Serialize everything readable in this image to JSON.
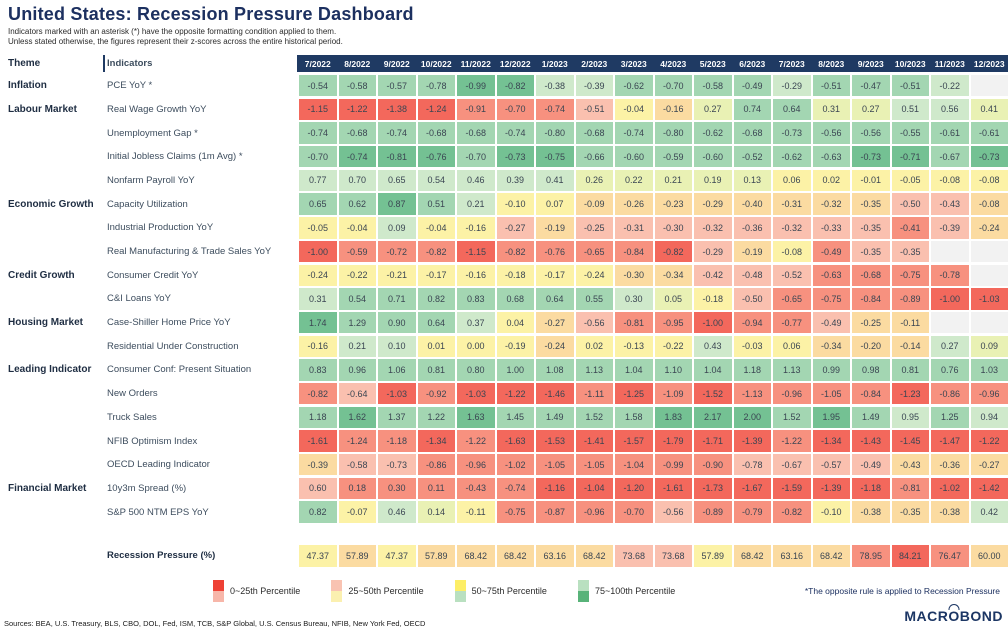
{
  "title": "United States: Recession Pressure Dashboard",
  "subtitle_line1": "Indicators marked with an asterisk (*) have the opposite formatting condition applied to them.",
  "subtitle_line2": "Unless stated otherwise, the figures represent their z-scores across the entire historical period.",
  "header": {
    "theme": "Theme",
    "indicators": "Indicators"
  },
  "palette": {
    "r": "#f3685c",
    "p2": "#f7917f",
    "p1": "#fac0af",
    "o": "#fbdba1",
    "y": "#fcf2a6",
    "yg": "#e9f1b4",
    "g1": "#cfe9cb",
    "g2": "#a3d6b2",
    "g3": "#74c193",
    "x": "#f2f2f2"
  },
  "chart_data": {
    "type": "heatmap",
    "title": "United States: Recession Pressure Dashboard",
    "value_note": "z-scores; colors encode percentile buckets",
    "columns": [
      "7/2022",
      "8/2022",
      "9/2022",
      "10/2022",
      "11/2022",
      "12/2022",
      "1/2023",
      "2/2023",
      "3/2023",
      "4/2023",
      "5/2023",
      "6/2023",
      "7/2023",
      "8/2023",
      "9/2023",
      "10/2023",
      "11/2023",
      "12/2023"
    ],
    "rows": [
      {
        "theme": "Inflation",
        "indicator": "PCE YoY *",
        "values": [
          -0.54,
          -0.58,
          -0.57,
          -0.78,
          -0.99,
          -0.82,
          -0.38,
          -0.39,
          -0.62,
          -0.7,
          -0.58,
          -0.49,
          -0.29,
          -0.51,
          -0.47,
          -0.51,
          -0.22,
          null
        ],
        "colors": [
          "g2",
          "g2",
          "g2",
          "g2",
          "g3",
          "g3",
          "g1",
          "g1",
          "g2",
          "g2",
          "g2",
          "g2",
          "g1",
          "g2",
          "g2",
          "g2",
          "g1",
          "x"
        ]
      },
      {
        "theme": "Labour Market",
        "indicator": "Real Wage Growth YoY",
        "values": [
          -1.15,
          -1.22,
          -1.38,
          -1.24,
          -0.91,
          -0.7,
          -0.74,
          -0.51,
          -0.04,
          -0.16,
          0.27,
          0.74,
          0.64,
          0.31,
          0.27,
          0.51,
          0.56,
          0.41
        ],
        "colors": [
          "r",
          "r",
          "r",
          "r",
          "p2",
          "p2",
          "p2",
          "p1",
          "y",
          "o",
          "yg",
          "g2",
          "g2",
          "yg",
          "yg",
          "g1",
          "g1",
          "yg"
        ]
      },
      {
        "theme": null,
        "indicator": "Unemployment Gap *",
        "values": [
          -0.74,
          -0.68,
          -0.74,
          -0.68,
          -0.68,
          -0.74,
          -0.8,
          -0.68,
          -0.74,
          -0.8,
          -0.62,
          -0.68,
          -0.73,
          -0.56,
          -0.56,
          -0.55,
          -0.61,
          -0.61
        ],
        "colors": [
          "g2",
          "g2",
          "g2",
          "g2",
          "g2",
          "g2",
          "g2",
          "g2",
          "g2",
          "g2",
          "g2",
          "g2",
          "g2",
          "g2",
          "g2",
          "g2",
          "g2",
          "g2"
        ]
      },
      {
        "theme": null,
        "indicator": "Initial Jobless Claims (1m Avg) *",
        "values": [
          -0.7,
          -0.74,
          -0.81,
          -0.76,
          -0.7,
          -0.73,
          -0.75,
          -0.66,
          -0.6,
          -0.59,
          -0.6,
          -0.52,
          -0.62,
          -0.63,
          -0.73,
          -0.71,
          -0.67,
          -0.73
        ],
        "colors": [
          "g2",
          "g3",
          "g3",
          "g3",
          "g2",
          "g3",
          "g3",
          "g2",
          "g2",
          "g2",
          "g2",
          "g2",
          "g2",
          "g2",
          "g3",
          "g3",
          "g2",
          "g3"
        ]
      },
      {
        "theme": null,
        "indicator": "Nonfarm Payroll YoY",
        "values": [
          0.77,
          0.7,
          0.65,
          0.54,
          0.46,
          0.39,
          0.41,
          0.26,
          0.22,
          0.21,
          0.19,
          0.13,
          0.06,
          0.02,
          -0.01,
          -0.05,
          -0.08,
          -0.08
        ],
        "colors": [
          "g1",
          "g1",
          "g1",
          "g1",
          "g1",
          "g1",
          "g1",
          "yg",
          "yg",
          "yg",
          "yg",
          "yg",
          "y",
          "y",
          "y",
          "y",
          "y",
          "y"
        ]
      },
      {
        "theme": "Economic Growth",
        "indicator": "Capacity Utilization",
        "values": [
          0.65,
          0.62,
          0.87,
          0.51,
          0.21,
          -0.1,
          0.07,
          -0.09,
          -0.26,
          -0.23,
          -0.29,
          -0.4,
          -0.31,
          -0.32,
          -0.35,
          -0.5,
          -0.43,
          -0.08
        ],
        "colors": [
          "g2",
          "g2",
          "g3",
          "g2",
          "g1",
          "y",
          "y",
          "o",
          "o",
          "o",
          "o",
          "o",
          "o",
          "o",
          "o",
          "p1",
          "p1",
          "o"
        ]
      },
      {
        "theme": null,
        "indicator": "Industrial Production YoY",
        "values": [
          -0.05,
          -0.04,
          0.09,
          -0.04,
          -0.16,
          -0.27,
          -0.19,
          -0.25,
          -0.31,
          -0.3,
          -0.32,
          -0.36,
          -0.32,
          -0.33,
          -0.35,
          -0.41,
          -0.39,
          -0.24
        ],
        "colors": [
          "y",
          "y",
          "g1",
          "y",
          "y",
          "p1",
          "o",
          "p1",
          "p1",
          "p1",
          "p1",
          "p1",
          "p1",
          "p1",
          "p1",
          "p2",
          "p1",
          "o"
        ]
      },
      {
        "theme": null,
        "indicator": "Real Manufacturing & Trade Sales YoY",
        "values": [
          -1.0,
          -0.59,
          -0.72,
          -0.82,
          -1.15,
          -0.82,
          -0.76,
          -0.65,
          -0.84,
          -0.82,
          -0.29,
          -0.19,
          -0.08,
          -0.49,
          -0.35,
          -0.35,
          null,
          null
        ],
        "colors": [
          "r",
          "p2",
          "p2",
          "p2",
          "r",
          "p2",
          "p2",
          "p2",
          "p2",
          "r",
          "p1",
          "o",
          "y",
          "p2",
          "p1",
          "p1",
          "x",
          "x"
        ]
      },
      {
        "theme": "Credit Growth",
        "indicator": "Consumer Credit YoY",
        "values": [
          -0.24,
          -0.22,
          -0.21,
          -0.17,
          -0.16,
          -0.18,
          -0.17,
          -0.24,
          -0.3,
          -0.34,
          -0.42,
          -0.48,
          -0.52,
          -0.63,
          -0.68,
          -0.75,
          -0.78,
          null
        ],
        "colors": [
          "y",
          "y",
          "y",
          "y",
          "y",
          "y",
          "y",
          "y",
          "o",
          "o",
          "p1",
          "p1",
          "p1",
          "p2",
          "p2",
          "p2",
          "p2",
          "x"
        ]
      },
      {
        "theme": null,
        "indicator": "C&I Loans YoY",
        "values": [
          0.31,
          0.54,
          0.71,
          0.82,
          0.83,
          0.68,
          0.64,
          0.55,
          0.3,
          0.05,
          -0.18,
          -0.5,
          -0.65,
          -0.75,
          -0.84,
          -0.89,
          -1.0,
          -1.03
        ],
        "colors": [
          "g1",
          "g2",
          "g2",
          "g2",
          "g2",
          "g2",
          "g2",
          "g2",
          "g1",
          "yg",
          "y",
          "p1",
          "p2",
          "p2",
          "p2",
          "p2",
          "r",
          "r"
        ]
      },
      {
        "theme": "Housing Market",
        "indicator": "Case-Shiller Home Price YoY",
        "values": [
          1.74,
          1.29,
          0.9,
          0.64,
          0.37,
          0.04,
          -0.27,
          -0.56,
          -0.81,
          -0.95,
          -1.0,
          -0.94,
          -0.77,
          -0.49,
          -0.25,
          -0.11,
          null,
          null
        ],
        "colors": [
          "g3",
          "g2",
          "g2",
          "g2",
          "g1",
          "y",
          "o",
          "p1",
          "p2",
          "p2",
          "r",
          "p2",
          "p2",
          "p1",
          "o",
          "o",
          "x",
          "x"
        ]
      },
      {
        "theme": null,
        "indicator": "Residential Under Construction",
        "values": [
          -0.16,
          0.21,
          0.1,
          0.01,
          0.0,
          -0.19,
          -0.24,
          0.02,
          -0.13,
          -0.22,
          0.43,
          -0.03,
          0.06,
          -0.34,
          -0.2,
          -0.14,
          0.27,
          0.09
        ],
        "colors": [
          "y",
          "g1",
          "g1",
          "y",
          "y",
          "y",
          "o",
          "y",
          "y",
          "y",
          "g1",
          "y",
          "y",
          "o",
          "o",
          "o",
          "g1",
          "yg"
        ]
      },
      {
        "theme": "Leading Indicator",
        "indicator": "Consumer Conf: Present Situation",
        "values": [
          0.83,
          0.96,
          1.06,
          0.81,
          0.8,
          1.0,
          1.08,
          1.13,
          1.04,
          1.1,
          1.04,
          1.18,
          1.13,
          0.99,
          0.98,
          0.81,
          0.76,
          1.03
        ],
        "colors": [
          "g2",
          "g2",
          "g2",
          "g2",
          "g2",
          "g2",
          "g2",
          "g2",
          "g2",
          "g2",
          "g2",
          "g2",
          "g2",
          "g2",
          "g2",
          "g2",
          "g2",
          "g2"
        ]
      },
      {
        "theme": null,
        "indicator": "New Orders",
        "values": [
          -0.82,
          -0.64,
          -1.03,
          -0.92,
          -1.03,
          -1.22,
          -1.46,
          -1.11,
          -1.25,
          -1.09,
          -1.52,
          -1.13,
          -0.96,
          -1.05,
          -0.84,
          -1.23,
          -0.86,
          -0.96
        ],
        "colors": [
          "p2",
          "p1",
          "r",
          "p2",
          "r",
          "r",
          "r",
          "p2",
          "r",
          "p2",
          "r",
          "p2",
          "p2",
          "p2",
          "p2",
          "r",
          "p2",
          "p2"
        ]
      },
      {
        "theme": null,
        "indicator": "Truck Sales",
        "values": [
          1.18,
          1.62,
          1.37,
          1.22,
          1.63,
          1.45,
          1.49,
          1.52,
          1.58,
          1.83,
          2.17,
          2.0,
          1.52,
          1.95,
          1.49,
          0.95,
          1.25,
          0.94
        ],
        "colors": [
          "g2",
          "g3",
          "g2",
          "g2",
          "g3",
          "g2",
          "g2",
          "g2",
          "g2",
          "g3",
          "g3",
          "g3",
          "g2",
          "g3",
          "g2",
          "g1",
          "g2",
          "g1"
        ]
      },
      {
        "theme": null,
        "indicator": "NFIB Optimism Index",
        "values": [
          -1.61,
          -1.24,
          -1.18,
          -1.34,
          -1.22,
          -1.63,
          -1.53,
          -1.41,
          -1.57,
          -1.79,
          -1.71,
          -1.39,
          -1.22,
          -1.34,
          -1.43,
          -1.45,
          -1.47,
          -1.22
        ],
        "colors": [
          "r",
          "p2",
          "p2",
          "r",
          "p2",
          "r",
          "r",
          "r",
          "r",
          "r",
          "r",
          "r",
          "p2",
          "r",
          "r",
          "r",
          "r",
          "r"
        ]
      },
      {
        "theme": null,
        "indicator": "OECD Leading Indicator",
        "values": [
          -0.39,
          -0.58,
          -0.73,
          -0.86,
          -0.96,
          -1.02,
          -1.05,
          -1.05,
          -1.04,
          -0.99,
          -0.9,
          -0.78,
          -0.67,
          -0.57,
          -0.49,
          -0.43,
          -0.36,
          -0.27
        ],
        "colors": [
          "o",
          "p1",
          "p1",
          "p2",
          "p2",
          "p2",
          "p2",
          "p2",
          "p2",
          "p2",
          "p2",
          "p1",
          "p1",
          "p1",
          "p1",
          "o",
          "o",
          "o"
        ]
      },
      {
        "theme": "Financial Market",
        "indicator": "10y3m Spread (%)",
        "values": [
          0.6,
          0.18,
          0.3,
          0.11,
          -0.43,
          -0.74,
          -1.16,
          -1.04,
          -1.2,
          -1.61,
          -1.73,
          -1.67,
          -1.59,
          -1.39,
          -1.18,
          -0.81,
          -1.02,
          -1.42
        ],
        "colors": [
          "p1",
          "p2",
          "p2",
          "p2",
          "p2",
          "p2",
          "r",
          "r",
          "r",
          "r",
          "r",
          "r",
          "r",
          "r",
          "r",
          "p2",
          "r",
          "r"
        ]
      },
      {
        "theme": null,
        "indicator": "S&P 500 NTM EPS YoY",
        "values": [
          0.82,
          -0.07,
          0.46,
          0.14,
          -0.11,
          -0.75,
          -0.87,
          -0.96,
          -0.7,
          -0.56,
          -0.89,
          -0.79,
          -0.82,
          -0.1,
          -0.38,
          -0.35,
          -0.38,
          0.42
        ],
        "colors": [
          "g2",
          "y",
          "g1",
          "yg",
          "y",
          "p2",
          "p2",
          "p2",
          "p2",
          "p1",
          "p2",
          "p2",
          "p2",
          "y",
          "o",
          "o",
          "o",
          "g1"
        ]
      }
    ],
    "summary_row": {
      "indicator": "Recession Pressure (%)",
      "values": [
        47.37,
        57.89,
        47.37,
        57.89,
        68.42,
        68.42,
        63.16,
        68.42,
        73.68,
        73.68,
        57.89,
        68.42,
        63.16,
        68.42,
        78.95,
        84.21,
        76.47,
        60.0
      ],
      "colors": [
        "y",
        "o",
        "y",
        "o",
        "o",
        "o",
        "o",
        "o",
        "p1",
        "p1",
        "y",
        "o",
        "o",
        "o",
        "p2",
        "r",
        "p2",
        "o"
      ]
    }
  },
  "legend": [
    {
      "label": "0~25th Percentile",
      "chip_top": "#ee4135",
      "chip_bottom": "#f7b6a9"
    },
    {
      "label": "25~50th Percentile",
      "chip_top": "#f9c3b2",
      "chip_bottom": "#fbf0b0"
    },
    {
      "label": "50~75th Percentile",
      "chip_top": "#fdee66",
      "chip_bottom": "#b9e0c0"
    },
    {
      "label": "75~100th Percentile",
      "chip_top": "#b9e0c0",
      "chip_bottom": "#58b379"
    }
  ],
  "footnote": "*The opposite rule is applied to Recession Pressure",
  "sources": "Sources: BEA, U.S. Treasury, BLS, CBO, DOL, Fed, ISM, TCB, S&P Global, U.S. Census Bureau, NFIB, New York Fed, OECD",
  "logo": {
    "prefix": "MACR",
    "o": "O",
    "suffix": "BOND"
  }
}
